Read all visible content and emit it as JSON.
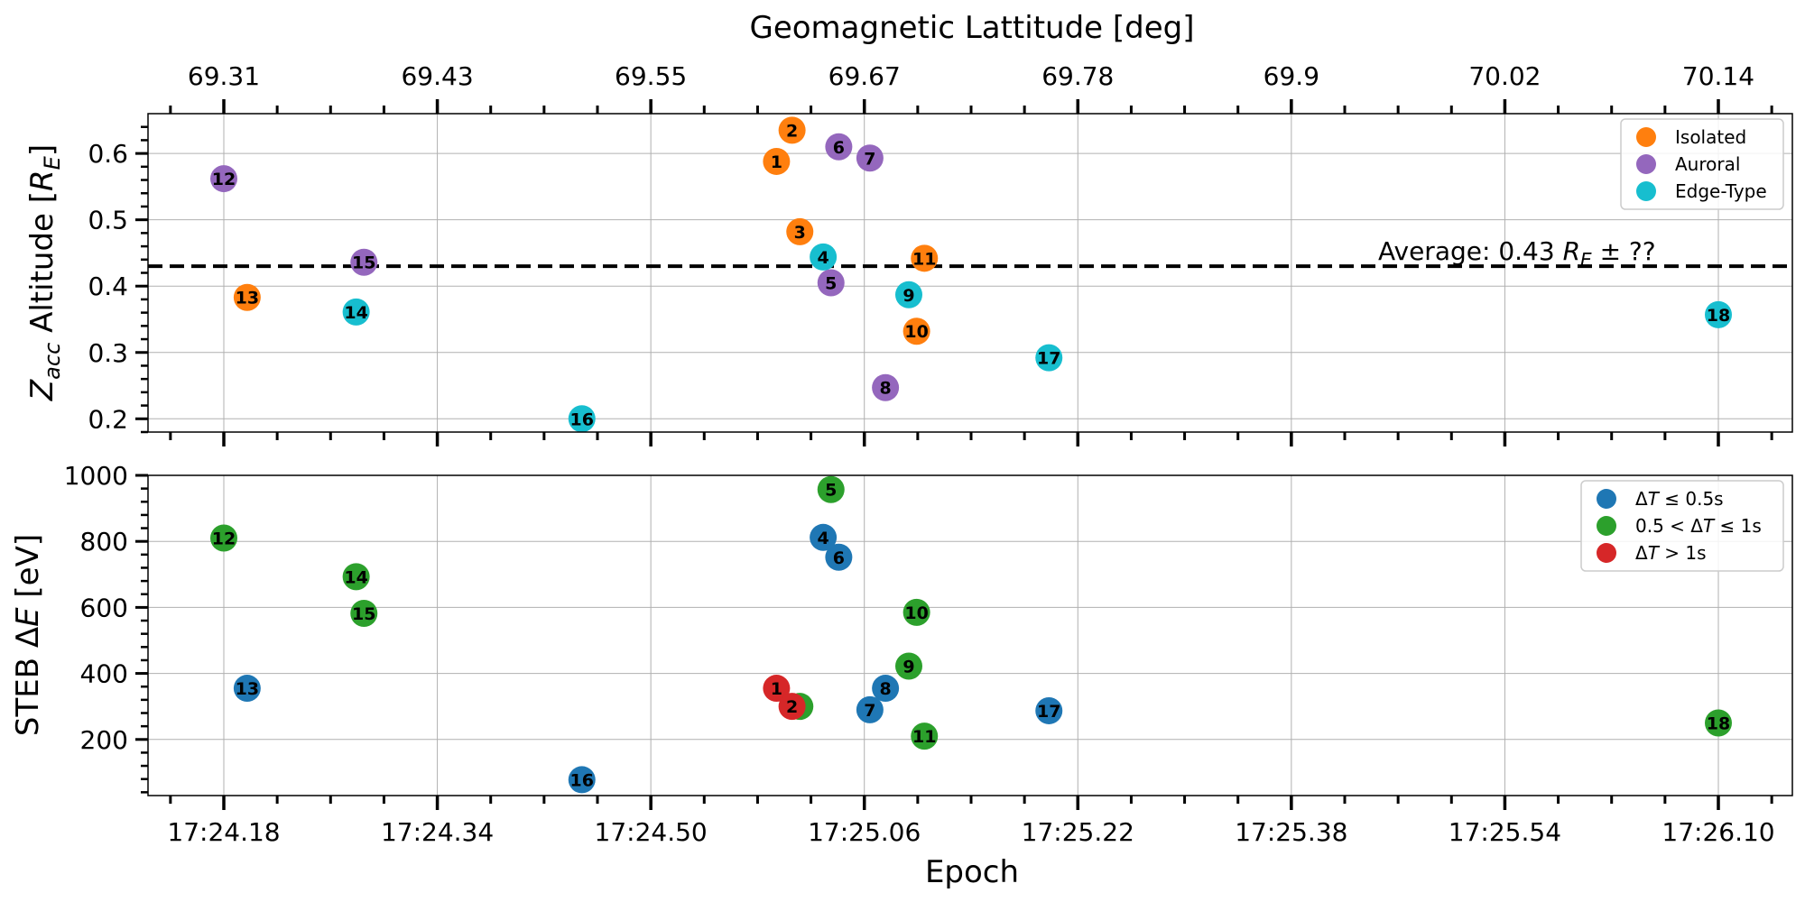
{
  "chart_data": [
    {
      "type": "scatter",
      "title": "",
      "xlabel_top": "Geomagnetic Lattitude [deg]",
      "top_tick_labels": [
        "69.31",
        "69.43",
        "69.55",
        "69.67",
        "69.78",
        "69.9",
        "70.02",
        "70.14"
      ],
      "ylabel_parts": {
        "z": "Z",
        "sub": "acc",
        "mid": " Altitude [",
        "r": "R",
        "rsub": "E",
        "end": "]"
      },
      "ylim": [
        0.18,
        0.66
      ],
      "yticks": [
        0.2,
        0.3,
        0.4,
        0.5,
        0.6
      ],
      "ytick_labels": [
        "0.2",
        "0.3",
        "0.4",
        "0.5",
        "0.6"
      ],
      "grid": true,
      "legend_position": "top-right",
      "average_line": {
        "value": 0.43,
        "label_parts": {
          "pre": "Average: 0.43 ",
          "r": "R",
          "rsub": "E",
          "post": " ± ??"
        }
      },
      "series": [
        {
          "name": "Isolated",
          "color": "#ff7f0e",
          "points": [
            {
              "id": "1",
              "x": 24.89,
              "y": 0.588
            },
            {
              "id": "2",
              "x": 24.91,
              "y": 0.635
            },
            {
              "id": "3",
              "x": 24.92,
              "y": 0.482
            },
            {
              "id": "10",
              "x": 25.07,
              "y": 0.332
            },
            {
              "id": "11",
              "x": 25.08,
              "y": 0.442
            },
            {
              "id": "13",
              "x": 24.21,
              "y": 0.383
            }
          ]
        },
        {
          "name": "Auroral",
          "color": "#9467bd",
          "points": [
            {
              "id": "5",
              "x": 24.96,
              "y": 0.405
            },
            {
              "id": "6",
              "x": 24.97,
              "y": 0.61
            },
            {
              "id": "7",
              "x": 25.01,
              "y": 0.593
            },
            {
              "id": "8",
              "x": 25.03,
              "y": 0.247
            },
            {
              "id": "12",
              "x": 24.18,
              "y": 0.562
            },
            {
              "id": "15",
              "x": 24.36,
              "y": 0.436
            }
          ]
        },
        {
          "name": "Edge-Type",
          "color": "#17becf",
          "points": [
            {
              "id": "4",
              "x": 24.95,
              "y": 0.444
            },
            {
              "id": "9",
              "x": 25.06,
              "y": 0.387
            },
            {
              "id": "14",
              "x": 24.35,
              "y": 0.361
            },
            {
              "id": "16",
              "x": 24.64,
              "y": 0.2
            },
            {
              "id": "17",
              "x": 25.24,
              "y": 0.292
            },
            {
              "id": "18",
              "x": 26.1,
              "y": 0.357
            }
          ]
        }
      ]
    },
    {
      "type": "scatter",
      "title": "",
      "xlabel": "Epoch",
      "xtick_labels": [
        "17:24.18",
        "17:24.34",
        "17:24.50",
        "17:25.06",
        "17:25.22",
        "17:25.38",
        "17:25.54",
        "17:26.10"
      ],
      "ylabel_parts": {
        "pre": "STEB ",
        "delta": "Δ",
        "e": "E",
        "end": " [eV]"
      },
      "ylim": [
        30,
        1000
      ],
      "yticks": [
        200,
        400,
        600,
        800,
        1000
      ],
      "ytick_labels": [
        "200",
        "400",
        "600",
        "800",
        "1000"
      ],
      "grid": true,
      "legend_position": "top-right",
      "series": [
        {
          "name": "ΔT ≤ 0.5s",
          "legend_parts": {
            "d": "Δ",
            "t": "T",
            "rest": " ≤  0.5s"
          },
          "color": "#1f77b4",
          "points": [
            {
              "id": "4",
              "x": 24.95,
              "y": 812
            },
            {
              "id": "6",
              "x": 24.97,
              "y": 752
            },
            {
              "id": "7",
              "x": 25.01,
              "y": 290
            },
            {
              "id": "8",
              "x": 25.03,
              "y": 355
            },
            {
              "id": "13",
              "x": 24.21,
              "y": 355
            },
            {
              "id": "16",
              "x": 24.64,
              "y": 78
            },
            {
              "id": "17",
              "x": 25.24,
              "y": 287
            }
          ]
        },
        {
          "name": "0.5 < ΔT ≤ 1s",
          "legend_parts": {
            "pre": "0.5 < ",
            "d": "Δ",
            "t": "T",
            "rest": " ≤  1s"
          },
          "color": "#2ca02c",
          "points": [
            {
              "id": "3",
              "x": 24.92,
              "y": 300
            },
            {
              "id": "5",
              "x": 24.96,
              "y": 957
            },
            {
              "id": "9",
              "x": 25.06,
              "y": 422
            },
            {
              "id": "10",
              "x": 25.07,
              "y": 585
            },
            {
              "id": "11",
              "x": 25.08,
              "y": 210
            },
            {
              "id": "12",
              "x": 24.18,
              "y": 810
            },
            {
              "id": "14",
              "x": 24.35,
              "y": 693
            },
            {
              "id": "15",
              "x": 24.36,
              "y": 582
            },
            {
              "id": "18",
              "x": 26.1,
              "y": 250
            }
          ]
        },
        {
          "name": "ΔT > 1s",
          "legend_parts": {
            "d": "Δ",
            "t": "T",
            "rest": " > 1s"
          },
          "color": "#d62728",
          "points": [
            {
              "id": "1",
              "x": 24.89,
              "y": 355
            },
            {
              "id": "2",
              "x": 24.91,
              "y": 300
            }
          ]
        }
      ]
    }
  ]
}
